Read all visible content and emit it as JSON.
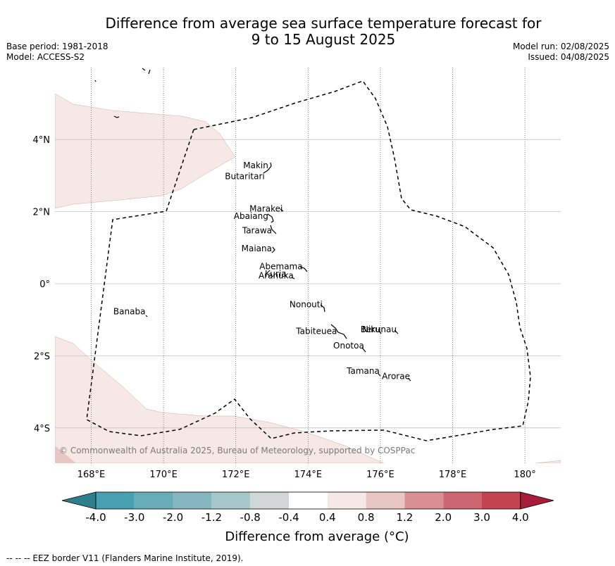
{
  "header": {
    "title_line1": "Difference from average sea surface temperature forecast for",
    "title_line2": "9 to 15 August 2025",
    "base_period": "Base period: 1981-2018",
    "model": "Model: ACCESS-S2",
    "model_run": "Model run: 02/08/2025",
    "issued": "Issued: 04/08/2025"
  },
  "map": {
    "lon_range": [
      167,
      181
    ],
    "lat_range": [
      -5,
      6
    ],
    "lon_ticks": [
      {
        "lon": 168,
        "label": "168°E"
      },
      {
        "lon": 170,
        "label": "170°E"
      },
      {
        "lon": 172,
        "label": "172°E"
      },
      {
        "lon": 174,
        "label": "174°E"
      },
      {
        "lon": 176,
        "label": "176°E"
      },
      {
        "lon": 178,
        "label": "178°E"
      },
      {
        "lon": 180,
        "label": "180°"
      }
    ],
    "lat_ticks": [
      {
        "lat": 4,
        "label": "4°N"
      },
      {
        "lat": 2,
        "label": "2°N"
      },
      {
        "lat": 0,
        "label": "0°"
      },
      {
        "lat": -2,
        "label": "2°S"
      },
      {
        "lat": -4,
        "label": "4°S"
      }
    ],
    "islands": [
      {
        "name": "Makin",
        "lon": 172.9,
        "lat": 3.2
      },
      {
        "name": "Butaritari",
        "lon": 172.8,
        "lat": 2.9
      },
      {
        "name": "Marakei",
        "lon": 173.3,
        "lat": 2.0
      },
      {
        "name": "Abaiang",
        "lon": 172.9,
        "lat": 1.8
      },
      {
        "name": "Tarawa",
        "lon": 173.0,
        "lat": 1.4
      },
      {
        "name": "Maiana",
        "lon": 173.0,
        "lat": 0.9
      },
      {
        "name": "Abemama",
        "lon": 173.85,
        "lat": 0.4
      },
      {
        "name": "Kuria",
        "lon": 173.4,
        "lat": 0.2
      },
      {
        "name": "Aranuka",
        "lon": 173.6,
        "lat": 0.15
      },
      {
        "name": "Banaba",
        "lon": 169.5,
        "lat": -0.85
      },
      {
        "name": "Nonouti",
        "lon": 174.4,
        "lat": -0.65
      },
      {
        "name": "Tabiteuea",
        "lon": 174.8,
        "lat": -1.4
      },
      {
        "name": "Beru",
        "lon": 176.0,
        "lat": -1.35
      },
      {
        "name": "Nikunau",
        "lon": 176.45,
        "lat": -1.35
      },
      {
        "name": "Onotoa",
        "lon": 175.55,
        "lat": -1.8
      },
      {
        "name": "Tamana",
        "lon": 175.98,
        "lat": -2.5
      },
      {
        "name": "Arorae",
        "lon": 176.82,
        "lat": -2.65
      }
    ],
    "copyright": "© Commonwealth of Australia 2025, Bureau of Meteorology, supported by COSPPac"
  },
  "colorbar": {
    "ticks": [
      "-4.0",
      "-3.0",
      "-2.0",
      "-1.2",
      "-0.8",
      "-0.4",
      "0.4",
      "0.8",
      "1.2",
      "2.0",
      "3.0",
      "4.0"
    ],
    "colors": [
      "#2e7f8c",
      "#46a0b1",
      "#68acb9",
      "#86b6c0",
      "#a6c8cb",
      "#d3d6d6",
      "#ffffff",
      "#f5e8e6",
      "#e8c6c2",
      "#d98f94",
      "#cd6670",
      "#c44353",
      "#a71d3c"
    ],
    "label": "Difference from average (°C)"
  },
  "footer": {
    "text": "--  --  -- EEZ border V11 (Flanders Marine Institute, 2019)."
  }
}
